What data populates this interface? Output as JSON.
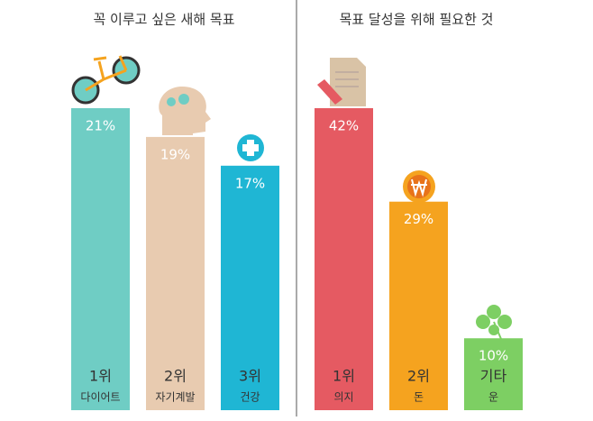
{
  "chart_data": [
    {
      "type": "bar",
      "title": "꼭 이루고 싶은 새해 목표",
      "ranks": [
        "1위",
        "2위",
        "3위"
      ],
      "categories": [
        "다이어트",
        "자기계발",
        "건강"
      ],
      "values": [
        21,
        19,
        17
      ],
      "value_labels": [
        "21%",
        "19%",
        "17%"
      ],
      "colors": [
        "#6fcdc4",
        "#e8cbb0",
        "#1fb6d4"
      ]
    },
    {
      "type": "bar",
      "title": "목표 달성을 위해 필요한 것",
      "ranks": [
        "1위",
        "2위",
        "기타"
      ],
      "categories": [
        "의지",
        "돈",
        "운"
      ],
      "values": [
        42,
        29,
        10
      ],
      "value_labels": [
        "42%",
        "29%",
        "10%"
      ],
      "colors": [
        "#e55a62",
        "#f5a31f",
        "#7dcf63"
      ]
    }
  ]
}
